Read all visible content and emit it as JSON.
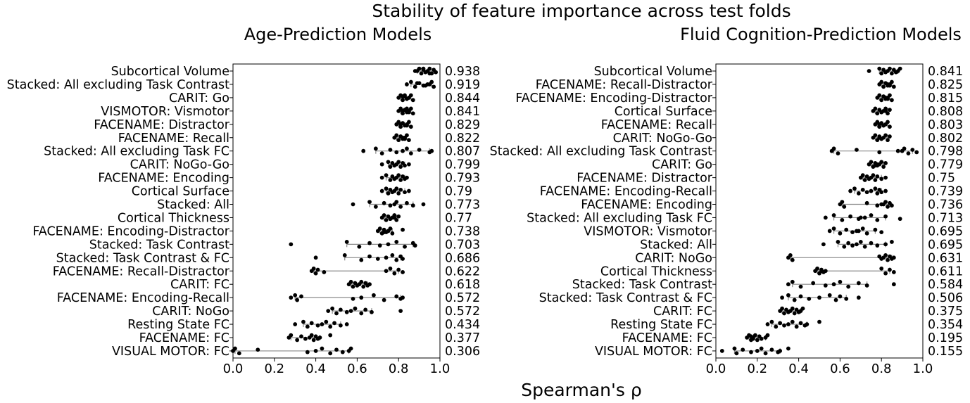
{
  "figure": {
    "suptitle": "Stability of feature importance across test folds",
    "xlabel": "Spearman's ρ"
  },
  "chart_data": [
    {
      "type": "scatter",
      "title": "Age-Prediction Models",
      "xlim": [
        0.0,
        1.0
      ],
      "xticks": [
        "0.0",
        "0.2",
        "0.4",
        "0.6",
        "0.8",
        "1.0"
      ],
      "grid": false,
      "marker_color": "#000000",
      "rows": [
        {
          "label": "Subcortical Volume",
          "mean": "0.938",
          "points": [
            0.88,
            0.9,
            0.91,
            0.92,
            0.93,
            0.94,
            0.95,
            0.96,
            0.97,
            0.98,
            0.89,
            0.92,
            0.95
          ]
        },
        {
          "label": "Stacked: All excluding Task Contrast",
          "mean": "0.919",
          "points": [
            0.84,
            0.86,
            0.88,
            0.9,
            0.92,
            0.94,
            0.96,
            0.97,
            0.89,
            0.93,
            0.95
          ]
        },
        {
          "label": "CARIT: Go",
          "mean": "0.844",
          "points": [
            0.8,
            0.81,
            0.82,
            0.83,
            0.84,
            0.85,
            0.86,
            0.87,
            0.82,
            0.84,
            0.85,
            0.83
          ]
        },
        {
          "label": "VISMOTOR: Vismotor",
          "mean": "0.841",
          "points": [
            0.8,
            0.81,
            0.82,
            0.83,
            0.84,
            0.85,
            0.86,
            0.87,
            0.83,
            0.85,
            0.82,
            0.84
          ]
        },
        {
          "label": "FACENAME: Distractor",
          "mean": "0.829",
          "points": [
            0.79,
            0.8,
            0.81,
            0.82,
            0.83,
            0.84,
            0.85,
            0.86,
            0.82,
            0.84,
            0.81
          ]
        },
        {
          "label": "FACENAME: Recall",
          "mean": "0.822",
          "points": [
            0.78,
            0.79,
            0.8,
            0.81,
            0.82,
            0.83,
            0.84,
            0.85,
            0.81,
            0.83,
            0.82
          ]
        },
        {
          "label": "Stacked: All excluding Task FC",
          "mean": "0.807",
          "points": [
            0.63,
            0.69,
            0.72,
            0.76,
            0.79,
            0.82,
            0.84,
            0.86,
            0.9,
            0.95,
            0.96
          ]
        },
        {
          "label": "CARIT: NoGo-Go",
          "mean": "0.799",
          "points": [
            0.72,
            0.75,
            0.76,
            0.77,
            0.78,
            0.79,
            0.8,
            0.81,
            0.82,
            0.83,
            0.85
          ]
        },
        {
          "label": "FACENAME: Encoding",
          "mean": "0.793",
          "points": [
            0.72,
            0.74,
            0.76,
            0.77,
            0.78,
            0.79,
            0.8,
            0.81,
            0.82,
            0.83,
            0.84
          ]
        },
        {
          "label": "Cortical Surface",
          "mean": "0.79",
          "points": [
            0.72,
            0.74,
            0.75,
            0.76,
            0.77,
            0.78,
            0.79,
            0.8,
            0.81,
            0.83,
            0.85
          ]
        },
        {
          "label": "Stacked: All",
          "mean": "0.773",
          "points": [
            0.58,
            0.66,
            0.69,
            0.73,
            0.76,
            0.78,
            0.79,
            0.81,
            0.84,
            0.87,
            0.92
          ]
        },
        {
          "label": "Cortical Thickness",
          "mean": "0.77",
          "points": [
            0.72,
            0.73,
            0.74,
            0.75,
            0.76,
            0.77,
            0.78,
            0.79,
            0.8,
            0.76,
            0.78
          ]
        },
        {
          "label": "FACENAME: Encoding-Distractor",
          "mean": "0.738",
          "points": [
            0.7,
            0.71,
            0.72,
            0.73,
            0.74,
            0.75,
            0.76,
            0.77,
            0.82,
            0.73,
            0.75
          ]
        },
        {
          "label": "Stacked: Task Contrast",
          "mean": "0.703",
          "points": [
            0.28,
            0.55,
            0.61,
            0.66,
            0.71,
            0.75,
            0.79,
            0.83,
            0.87,
            0.88
          ]
        },
        {
          "label": "Stacked: Task Contrast & FC",
          "mean": "0.686",
          "points": [
            0.4,
            0.54,
            0.62,
            0.66,
            0.7,
            0.74,
            0.77,
            0.79,
            0.81,
            0.82
          ]
        },
        {
          "label": "FACENAME: Recall-Distractor",
          "mean": "0.622",
          "points": [
            0.38,
            0.39,
            0.4,
            0.41,
            0.44,
            0.74,
            0.76,
            0.78,
            0.8,
            0.82
          ]
        },
        {
          "label": "CARIT: FC",
          "mean": "0.618",
          "points": [
            0.56,
            0.57,
            0.58,
            0.59,
            0.6,
            0.61,
            0.62,
            0.63,
            0.64,
            0.65,
            0.66
          ]
        },
        {
          "label": "FACENAME: Encoding-Recall",
          "mean": "0.572",
          "points": [
            0.28,
            0.3,
            0.31,
            0.33,
            0.58,
            0.62,
            0.68,
            0.73,
            0.79,
            0.81,
            0.82
          ]
        },
        {
          "label": "CARIT: NoGo",
          "mean": "0.572",
          "points": [
            0.46,
            0.48,
            0.5,
            0.52,
            0.55,
            0.57,
            0.59,
            0.62,
            0.64,
            0.67,
            0.81
          ]
        },
        {
          "label": "Resting State FC",
          "mean": "0.434",
          "points": [
            0.3,
            0.34,
            0.36,
            0.38,
            0.41,
            0.43,
            0.45,
            0.47,
            0.49,
            0.52,
            0.55
          ]
        },
        {
          "label": "FACENAME: FC",
          "mean": "0.377",
          "points": [
            0.27,
            0.28,
            0.31,
            0.33,
            0.35,
            0.37,
            0.38,
            0.39,
            0.4,
            0.41,
            0.42,
            0.47
          ]
        },
        {
          "label": "VISUAL MOTOR: FC",
          "mean": "0.306",
          "points": [
            0.0,
            0.01,
            0.03,
            0.12,
            0.36,
            0.4,
            0.43,
            0.47,
            0.5,
            0.53,
            0.56,
            0.57
          ]
        }
      ]
    },
    {
      "type": "scatter",
      "title": "Fluid Cognition-Prediction Models",
      "xlim": [
        0.0,
        1.0
      ],
      "xticks": [
        "0.0",
        "0.2",
        "0.4",
        "0.6",
        "0.8",
        "1.0"
      ],
      "grid": false,
      "marker_color": "#000000",
      "rows": [
        {
          "label": "Subcortical Volume",
          "mean": "0.841",
          "points": [
            0.74,
            0.79,
            0.8,
            0.81,
            0.82,
            0.83,
            0.84,
            0.85,
            0.86,
            0.87,
            0.88,
            0.89
          ]
        },
        {
          "label": "FACENAME: Recall-Distractor",
          "mean": "0.825",
          "points": [
            0.79,
            0.8,
            0.81,
            0.82,
            0.83,
            0.84,
            0.85,
            0.86,
            0.82,
            0.84,
            0.83
          ]
        },
        {
          "label": "FACENAME: Encoding-Distractor",
          "mean": "0.815",
          "points": [
            0.78,
            0.79,
            0.8,
            0.81,
            0.82,
            0.83,
            0.84,
            0.85,
            0.81,
            0.83,
            0.82
          ]
        },
        {
          "label": "Cortical Surface",
          "mean": "0.808",
          "points": [
            0.76,
            0.77,
            0.78,
            0.79,
            0.8,
            0.81,
            0.82,
            0.83,
            0.84,
            0.8,
            0.82
          ]
        },
        {
          "label": "FACENAME: Recall",
          "mean": "0.803",
          "points": [
            0.77,
            0.78,
            0.79,
            0.8,
            0.81,
            0.82,
            0.83,
            0.84,
            0.8,
            0.81,
            0.79
          ]
        },
        {
          "label": "CARIT: NoGo-Go",
          "mean": "0.802",
          "points": [
            0.76,
            0.77,
            0.78,
            0.79,
            0.8,
            0.81,
            0.82,
            0.83,
            0.84,
            0.8,
            0.79
          ]
        },
        {
          "label": "Stacked: All excluding Task Contrast",
          "mean": "0.798",
          "points": [
            0.56,
            0.57,
            0.59,
            0.68,
            0.79,
            0.88,
            0.91,
            0.93,
            0.95,
            0.97,
            0.9
          ]
        },
        {
          "label": "CARIT: Go",
          "mean": "0.779",
          "points": [
            0.74,
            0.75,
            0.76,
            0.77,
            0.78,
            0.79,
            0.8,
            0.81,
            0.82,
            0.77,
            0.78
          ]
        },
        {
          "label": "FACENAME: Distractor",
          "mean": "0.75",
          "points": [
            0.7,
            0.71,
            0.72,
            0.73,
            0.74,
            0.75,
            0.76,
            0.77,
            0.78,
            0.8,
            0.82
          ]
        },
        {
          "label": "FACENAME: Encoding-Recall",
          "mean": "0.739",
          "points": [
            0.65,
            0.67,
            0.69,
            0.71,
            0.73,
            0.75,
            0.77,
            0.78,
            0.79,
            0.8,
            0.82
          ]
        },
        {
          "label": "FACENAME: Encoding",
          "mean": "0.736",
          "points": [
            0.6,
            0.61,
            0.62,
            0.73,
            0.78,
            0.8,
            0.82,
            0.83,
            0.84,
            0.85,
            0.81
          ]
        },
        {
          "label": "Stacked: All excluding Task FC",
          "mean": "0.713",
          "points": [
            0.53,
            0.57,
            0.61,
            0.65,
            0.69,
            0.72,
            0.75,
            0.78,
            0.82,
            0.89,
            0.7
          ]
        },
        {
          "label": "VISMOTOR: Vismotor",
          "mean": "0.695",
          "points": [
            0.55,
            0.57,
            0.6,
            0.63,
            0.66,
            0.68,
            0.71,
            0.73,
            0.77,
            0.8,
            0.69
          ]
        },
        {
          "label": "Stacked: All",
          "mean": "0.695",
          "points": [
            0.52,
            0.59,
            0.62,
            0.64,
            0.66,
            0.68,
            0.7,
            0.72,
            0.75,
            0.78,
            0.82,
            0.85
          ]
        },
        {
          "label": "CARIT: NoGo",
          "mean": "0.631",
          "points": [
            0.35,
            0.36,
            0.37,
            0.79,
            0.8,
            0.81,
            0.82,
            0.83,
            0.84,
            0.85,
            0.86
          ]
        },
        {
          "label": "Cortical Thickness",
          "mean": "0.611",
          "points": [
            0.48,
            0.49,
            0.5,
            0.51,
            0.52,
            0.53,
            0.8,
            0.82,
            0.84,
            0.86,
            0.51
          ]
        },
        {
          "label": "Stacked: Task Contrast",
          "mean": "0.584",
          "points": [
            0.35,
            0.37,
            0.41,
            0.47,
            0.53,
            0.57,
            0.6,
            0.64,
            0.69,
            0.73,
            0.86
          ]
        },
        {
          "label": "Stacked: Task Contrast & FC",
          "mean": "0.506",
          "points": [
            0.32,
            0.35,
            0.38,
            0.41,
            0.45,
            0.5,
            0.55,
            0.58,
            0.6,
            0.63,
            0.69
          ]
        },
        {
          "label": "CARIT: FC",
          "mean": "0.375",
          "points": [
            0.31,
            0.32,
            0.33,
            0.34,
            0.35,
            0.36,
            0.37,
            0.38,
            0.39,
            0.4,
            0.41,
            0.42
          ]
        },
        {
          "label": "Resting State FC",
          "mean": "0.354",
          "points": [
            0.25,
            0.27,
            0.29,
            0.31,
            0.33,
            0.35,
            0.37,
            0.39,
            0.41,
            0.43,
            0.44,
            0.5
          ]
        },
        {
          "label": "FACENAME: FC",
          "mean": "0.195",
          "points": [
            0.15,
            0.16,
            0.17,
            0.17,
            0.18,
            0.18,
            0.19,
            0.2,
            0.21,
            0.22,
            0.24,
            0.25
          ]
        },
        {
          "label": "VISUAL MOTOR: FC",
          "mean": "0.155",
          "points": [
            0.03,
            0.09,
            0.1,
            0.13,
            0.17,
            0.2,
            0.22,
            0.24,
            0.27,
            0.3,
            0.31,
            0.35
          ]
        }
      ]
    }
  ]
}
